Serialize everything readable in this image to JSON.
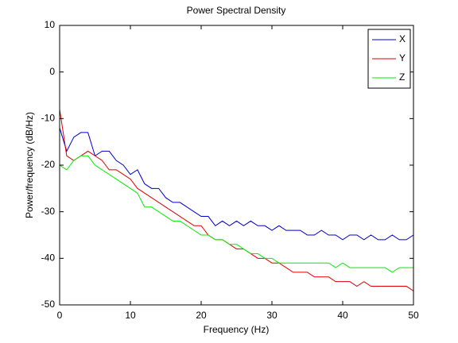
{
  "chart_data": {
    "type": "line",
    "title": "Power Spectral Density",
    "xlabel": "Frequency (Hz)",
    "ylabel": "Power/frequency (dB/Hz)",
    "x": [
      0,
      1,
      2,
      3,
      4,
      5,
      6,
      7,
      8,
      9,
      10,
      11,
      12,
      13,
      14,
      15,
      16,
      17,
      18,
      19,
      20,
      21,
      22,
      23,
      24,
      25,
      26,
      27,
      28,
      29,
      30,
      31,
      32,
      33,
      34,
      35,
      36,
      37,
      38,
      39,
      40,
      41,
      42,
      43,
      44,
      45,
      46,
      47,
      48,
      49,
      50
    ],
    "series": [
      {
        "name": "X",
        "color": "#0000cc",
        "values": [
          -12,
          -17,
          -14,
          -13,
          -13,
          -18,
          -17,
          -17,
          -19,
          -20,
          -22,
          -21,
          -24,
          -25,
          -25,
          -27,
          -28,
          -28,
          -29,
          -30,
          -31,
          -31,
          -33,
          -32,
          -33,
          -32,
          -33,
          -32,
          -33,
          -33,
          -34,
          -33,
          -34,
          -34,
          -34,
          -35,
          -35,
          -34,
          -35,
          -35,
          -36,
          -35,
          -35,
          -36,
          -35,
          -36,
          -36,
          -35,
          -36,
          -36,
          -35
        ]
      },
      {
        "name": "Y",
        "color": "#dd0000",
        "values": [
          -8,
          -18,
          -19,
          -18,
          -17,
          -18,
          -19,
          -21,
          -21,
          -22,
          -23,
          -25,
          -26,
          -27,
          -28,
          -29,
          -30,
          -31,
          -32,
          -33,
          -33,
          -35,
          -36,
          -36,
          -37,
          -38,
          -38,
          -39,
          -40,
          -40,
          -41,
          -41,
          -42,
          -43,
          -43,
          -43,
          -44,
          -44,
          -44,
          -45,
          -45,
          -45,
          -46,
          -45,
          -46,
          -46,
          -46,
          -46,
          -46,
          -46,
          -47
        ]
      },
      {
        "name": "Z",
        "color": "#00ee00",
        "values": [
          -20,
          -21,
          -19,
          -18,
          -18,
          -20,
          -21,
          -22,
          -23,
          -24,
          -25,
          -26,
          -29,
          -29,
          -30,
          -31,
          -32,
          -32,
          -33,
          -34,
          -35,
          -35,
          -36,
          -36,
          -37,
          -37,
          -38,
          -39,
          -39,
          -40,
          -40,
          -41,
          -41,
          -41,
          -41,
          -41,
          -41,
          -41,
          -41,
          -42,
          -41,
          -42,
          -42,
          -42,
          -42,
          -42,
          -42,
          -43,
          -42,
          -42,
          -42
        ]
      }
    ],
    "xlim": [
      0,
      50
    ],
    "xticks": [
      0,
      10,
      20,
      30,
      40,
      50
    ],
    "ylim": [
      -50,
      10
    ],
    "yticks": [
      -50,
      -40,
      -30,
      -20,
      -10,
      0,
      10
    ],
    "legend": "northeast"
  }
}
